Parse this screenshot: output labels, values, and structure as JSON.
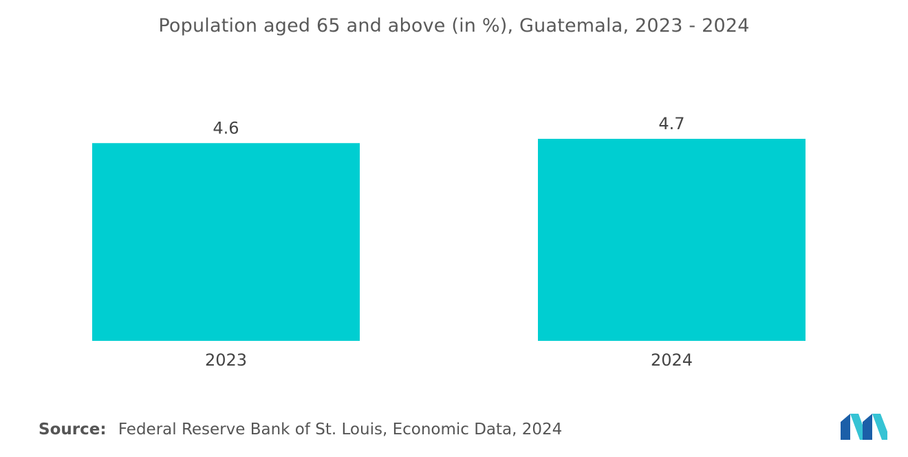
{
  "title": "Population aged 65 and above (in %), Guatemala, 2023 - 2024",
  "chart_data": {
    "type": "bar",
    "title": "Population aged 65 and above (in %), Guatemala, 2023 - 2024",
    "categories": [
      "2023",
      "2024"
    ],
    "values": [
      4.6,
      4.7
    ],
    "value_labels": [
      "4.6",
      "4.7"
    ],
    "xlabel": "",
    "ylabel": "",
    "ylim": [
      0,
      4.7
    ],
    "grid": false,
    "legend": "none",
    "bar_color": "#00ced1"
  },
  "source": {
    "label": "Source:",
    "text": "Federal Reserve Bank of St. Louis, Economic Data, 2024"
  },
  "colors": {
    "bar": "#00ced1",
    "logo_dark": "#1b5fa8",
    "logo_light": "#35c3d4"
  },
  "logo": {
    "icon": "mordor-intelligence-logo-icon"
  }
}
